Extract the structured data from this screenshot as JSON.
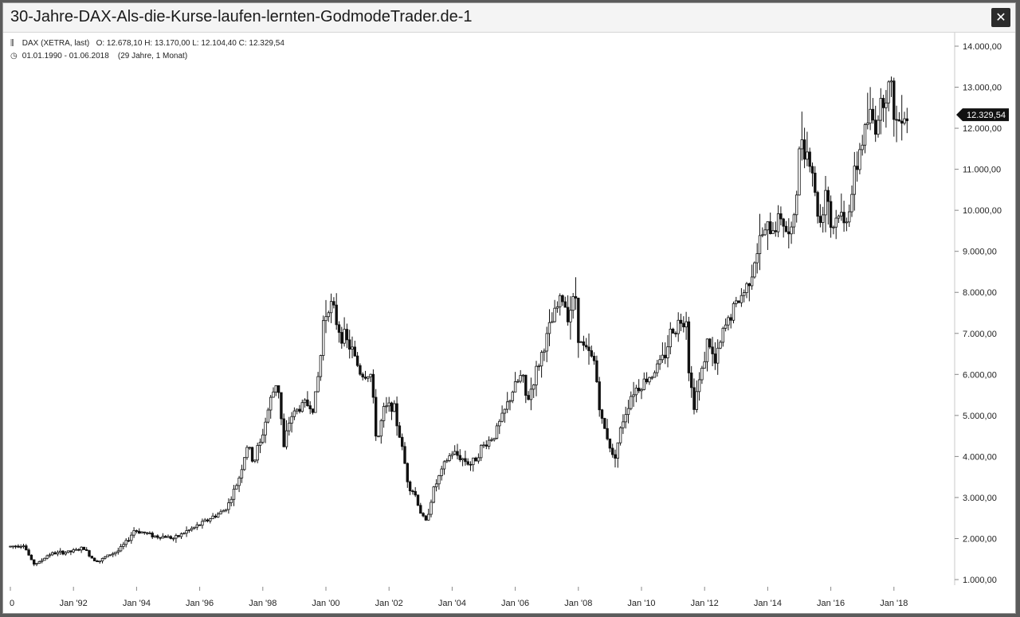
{
  "window": {
    "title": "30-Jahre-DAX-Als-die-Kurse-laufen-lernten-GodmodeTrader.de-1",
    "close_icon": "close-icon"
  },
  "header": {
    "instrument": "DAX (XETRA, last)",
    "ohlc": "O: 12.678,10  H: 13.170,00  L: 12.104,40  C: 12.329,54",
    "period": "01.01.1990 - 01.06.2018",
    "period_note": "(29 Jahre, 1 Monat)",
    "instrument_icon": "candlestick-icon",
    "period_icon": "clock-icon"
  },
  "last_price_label": "12.329,54",
  "chart_data": {
    "type": "candlestick",
    "y_ticks": [
      1000,
      2000,
      3000,
      4000,
      5000,
      6000,
      7000,
      8000,
      9000,
      10000,
      11000,
      12000,
      13000,
      14000
    ],
    "y_tick_labels": [
      "1.000,00",
      "2.000,00",
      "3.000,00",
      "4.000,00",
      "5.000,00",
      "6.000,00",
      "7.000,00",
      "8.000,00",
      "9.000,00",
      "10.000,00",
      "11.000,00",
      "12.000,00",
      "13.000,00",
      "14.000,00"
    ],
    "x_ticks": [
      1990,
      1992,
      1994,
      1996,
      1998,
      2000,
      2002,
      2004,
      2006,
      2008,
      2010,
      2012,
      2014,
      2016,
      2018
    ],
    "x_tick_labels": [
      "0",
      "Jan '92",
      "Jan '94",
      "Jan '96",
      "Jan '98",
      "Jan '00",
      "Jan '02",
      "Jan '04",
      "Jan '06",
      "Jan '08",
      "Jan '10",
      "Jan '12",
      "Jan '14",
      "Jan '16",
      "Jan '18"
    ],
    "last_close": 12329.54,
    "anchors": [
      [
        1990.0,
        1800
      ],
      [
        1990.5,
        1850
      ],
      [
        1990.6,
        1700
      ],
      [
        1990.8,
        1380
      ],
      [
        1991.0,
        1420
      ],
      [
        1991.3,
        1620
      ],
      [
        1991.6,
        1650
      ],
      [
        1992.0,
        1680
      ],
      [
        1992.4,
        1770
      ],
      [
        1992.7,
        1500
      ],
      [
        1992.9,
        1450
      ],
      [
        1993.2,
        1600
      ],
      [
        1993.5,
        1700
      ],
      [
        1993.8,
        1950
      ],
      [
        1994.0,
        2200
      ],
      [
        1994.3,
        2150
      ],
      [
        1994.7,
        2050
      ],
      [
        1995.0,
        2050
      ],
      [
        1995.3,
        2000
      ],
      [
        1995.6,
        2150
      ],
      [
        1996.0,
        2300
      ],
      [
        1996.5,
        2530
      ],
      [
        1996.8,
        2650
      ],
      [
        1997.0,
        2850
      ],
      [
        1997.3,
        3400
      ],
      [
        1997.6,
        4300
      ],
      [
        1997.8,
        3800
      ],
      [
        1997.9,
        4200
      ],
      [
        1998.0,
        4300
      ],
      [
        1998.3,
        5300
      ],
      [
        1998.55,
        5900
      ],
      [
        1998.75,
        4200
      ],
      [
        1998.9,
        4800
      ],
      [
        1999.0,
        5000
      ],
      [
        1999.4,
        5300
      ],
      [
        1999.7,
        5200
      ],
      [
        1999.9,
        6300
      ],
      [
        2000.0,
        7300
      ],
      [
        2000.2,
        7800
      ],
      [
        2000.5,
        7100
      ],
      [
        2000.9,
        6600
      ],
      [
        2001.2,
        6000
      ],
      [
        2001.5,
        6000
      ],
      [
        2001.7,
        4300
      ],
      [
        2001.9,
        5100
      ],
      [
        2002.2,
        5300
      ],
      [
        2002.5,
        4200
      ],
      [
        2002.7,
        3300
      ],
      [
        2002.9,
        3100
      ],
      [
        2003.1,
        2600
      ],
      [
        2003.25,
        2400
      ],
      [
        2003.5,
        3200
      ],
      [
        2003.9,
        3900
      ],
      [
        2004.1,
        4100
      ],
      [
        2004.4,
        3950
      ],
      [
        2004.7,
        3800
      ],
      [
        2005.0,
        4200
      ],
      [
        2005.4,
        4500
      ],
      [
        2005.7,
        5000
      ],
      [
        2006.0,
        5600
      ],
      [
        2006.3,
        6000
      ],
      [
        2006.45,
        5300
      ],
      [
        2006.8,
        6200
      ],
      [
        2007.0,
        6700
      ],
      [
        2007.3,
        7400
      ],
      [
        2007.55,
        7900
      ],
      [
        2007.75,
        7500
      ],
      [
        2008.0,
        7900
      ],
      [
        2008.1,
        6800
      ],
      [
        2008.4,
        6500
      ],
      [
        2008.6,
        6300
      ],
      [
        2008.8,
        4900
      ],
      [
        2009.0,
        4500
      ],
      [
        2009.2,
        3900
      ],
      [
        2009.5,
        4900
      ],
      [
        2009.8,
        5600
      ],
      [
        2010.0,
        5700
      ],
      [
        2010.4,
        6000
      ],
      [
        2010.8,
        6400
      ],
      [
        2011.0,
        7000
      ],
      [
        2011.3,
        7300
      ],
      [
        2011.5,
        7400
      ],
      [
        2011.6,
        5900
      ],
      [
        2011.75,
        5300
      ],
      [
        2012.0,
        6100
      ],
      [
        2012.2,
        6900
      ],
      [
        2012.4,
        6200
      ],
      [
        2012.7,
        7100
      ],
      [
        2013.0,
        7600
      ],
      [
        2013.4,
        8100
      ],
      [
        2013.9,
        9400
      ],
      [
        2014.3,
        9600
      ],
      [
        2014.5,
        9900
      ],
      [
        2014.8,
        9200
      ],
      [
        2015.0,
        10500
      ],
      [
        2015.15,
        11900
      ],
      [
        2015.3,
        11500
      ],
      [
        2015.5,
        11000
      ],
      [
        2015.6,
        10200
      ],
      [
        2015.75,
        9700
      ],
      [
        2015.95,
        10700
      ],
      [
        2016.1,
        9500
      ],
      [
        2016.35,
        10000
      ],
      [
        2016.5,
        9600
      ],
      [
        2016.8,
        10600
      ],
      [
        2017.0,
        11500
      ],
      [
        2017.3,
        12300
      ],
      [
        2017.5,
        12100
      ],
      [
        2017.75,
        12800
      ],
      [
        2017.95,
        13100
      ],
      [
        2018.1,
        12400
      ],
      [
        2018.2,
        12000
      ],
      [
        2018.35,
        12600
      ],
      [
        2018.42,
        12330
      ]
    ],
    "ylim": [
      500,
      14300
    ],
    "xlim": [
      1990.0,
      2019.25
    ]
  }
}
